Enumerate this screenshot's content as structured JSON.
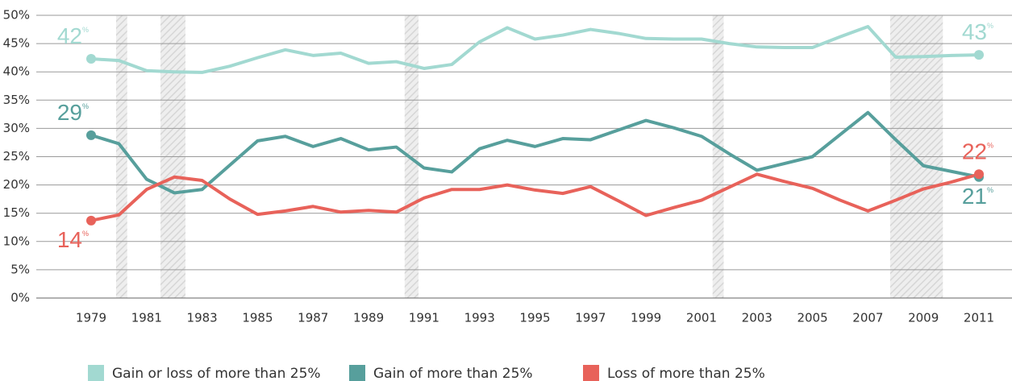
{
  "chart_data": {
    "type": "line",
    "x": [
      1979,
      1980,
      1981,
      1982,
      1983,
      1984,
      1985,
      1986,
      1987,
      1988,
      1989,
      1990,
      1991,
      1992,
      1993,
      1994,
      1995,
      1996,
      1997,
      1998,
      1999,
      2000,
      2001,
      2002,
      2003,
      2004,
      2005,
      2006,
      2007,
      2008,
      2009,
      2010,
      2011
    ],
    "series": [
      {
        "name": "Gain or loss of more than 25%",
        "color": "#a2d9d1",
        "values": [
          42.3,
          42.0,
          40.2,
          40.0,
          39.9,
          41.0,
          42.5,
          43.9,
          42.9,
          43.3,
          41.5,
          41.8,
          40.6,
          41.3,
          45.3,
          47.8,
          45.8,
          46.5,
          47.5,
          46.8,
          45.9,
          45.8,
          45.8,
          45.0,
          44.4,
          44.3,
          44.3,
          46.2,
          48.0,
          42.6,
          42.7,
          42.9,
          43.0
        ],
        "value_labels": [
          "42%",
          null,
          null,
          null,
          null,
          null,
          null,
          null,
          null,
          null,
          null,
          null,
          null,
          null,
          null,
          null,
          null,
          null,
          null,
          null,
          null,
          null,
          null,
          null,
          null,
          null,
          null,
          null,
          null,
          null,
          null,
          null,
          "43%"
        ]
      },
      {
        "name": "Gain of more than 25%",
        "color": "#579f9c",
        "values": [
          28.8,
          27.3,
          21.0,
          18.6,
          19.2,
          23.5,
          27.8,
          28.6,
          26.8,
          28.2,
          26.2,
          26.7,
          23.0,
          22.3,
          26.4,
          27.9,
          26.8,
          28.2,
          28.0,
          29.7,
          31.4,
          30.1,
          28.6,
          25.5,
          22.6,
          23.8,
          25.0,
          28.9,
          32.8,
          28.0,
          23.4,
          22.4,
          21.4
        ],
        "value_labels": [
          "29%",
          null,
          null,
          null,
          null,
          null,
          null,
          null,
          null,
          null,
          null,
          null,
          null,
          null,
          null,
          null,
          null,
          null,
          null,
          null,
          null,
          null,
          null,
          null,
          null,
          null,
          null,
          null,
          null,
          null,
          null,
          null,
          "21%"
        ]
      },
      {
        "name": "Loss of more than 25%",
        "color": "#e8625a",
        "values": [
          13.7,
          14.7,
          19.2,
          21.4,
          20.8,
          17.5,
          14.8,
          15.4,
          16.2,
          15.2,
          15.5,
          15.2,
          17.7,
          19.2,
          19.2,
          20.0,
          19.1,
          18.5,
          19.7,
          17.2,
          14.6,
          16.0,
          17.3,
          19.6,
          21.9,
          20.6,
          19.4,
          17.3,
          15.4,
          17.3,
          19.3,
          20.5,
          21.9
        ],
        "value_labels": [
          "14%",
          null,
          null,
          null,
          null,
          null,
          null,
          null,
          null,
          null,
          null,
          null,
          null,
          null,
          null,
          null,
          null,
          null,
          null,
          null,
          null,
          null,
          null,
          null,
          null,
          null,
          null,
          null,
          null,
          null,
          null,
          null,
          "22%"
        ]
      }
    ],
    "shaded_periods": [
      [
        1979.9,
        1980.3
      ],
      [
        1981.5,
        1982.4
      ],
      [
        1990.3,
        1990.8
      ],
      [
        2001.4,
        2001.8
      ],
      [
        2007.8,
        2009.7
      ]
    ],
    "xlim": [
      1979,
      2011
    ],
    "xticks": [
      1979,
      1981,
      1983,
      1985,
      1987,
      1989,
      1991,
      1993,
      1995,
      1997,
      1999,
      2001,
      2003,
      2005,
      2007,
      2009,
      2011
    ],
    "ylim": [
      0,
      50
    ],
    "yticks": [
      {
        "value": 0,
        "label": "0%"
      },
      {
        "value": 5,
        "label": "5%"
      },
      {
        "value": 10,
        "label": "10%"
      },
      {
        "value": 15,
        "label": "15%"
      },
      {
        "value": 20,
        "label": "20%"
      },
      {
        "value": 25,
        "label": "25%"
      },
      {
        "value": 30,
        "label": "30%"
      },
      {
        "value": 35,
        "label": "35%"
      },
      {
        "value": 40,
        "label": "40%"
      },
      {
        "value": 45,
        "label": "45%"
      },
      {
        "value": 50,
        "label": "50%"
      }
    ],
    "grid": true,
    "legend": "bottom"
  }
}
